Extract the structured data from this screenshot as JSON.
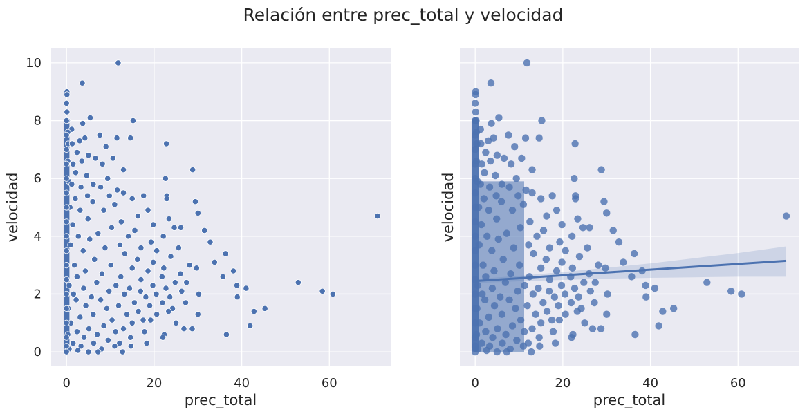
{
  "title": "Relación entre prec_total y velocidad",
  "colors": {
    "background": "#eaeaf2",
    "grid": "#ffffff",
    "point": "#4c72b0",
    "point_edge": "#ffffff",
    "ci_band": "#4c72b0"
  },
  "chart_data": [
    {
      "type": "scatter",
      "title": "",
      "xlabel": "prec_total",
      "ylabel": "velocidad",
      "xlim": [
        -3.5,
        74
      ],
      "ylim": [
        -0.5,
        10.5
      ],
      "xticks": [
        0,
        20,
        40,
        60
      ],
      "yticks": [
        0,
        2,
        4,
        6,
        8,
        10
      ],
      "grid": true,
      "points": [
        [
          11.8,
          10.0
        ],
        [
          0.1,
          9.0
        ],
        [
          0.1,
          8.9
        ],
        [
          3.6,
          9.3
        ],
        [
          0.0,
          8.6
        ],
        [
          0.1,
          8.3
        ],
        [
          0.2,
          8.0
        ],
        [
          5.4,
          8.1
        ],
        [
          15.2,
          8.0
        ],
        [
          3.7,
          7.9
        ],
        [
          1.2,
          7.7
        ],
        [
          0.3,
          7.6
        ],
        [
          4.2,
          7.4
        ],
        [
          7.6,
          7.5
        ],
        [
          11.5,
          7.4
        ],
        [
          14.6,
          7.4
        ],
        [
          0.4,
          7.2
        ],
        [
          1.3,
          7.2
        ],
        [
          3.0,
          7.3
        ],
        [
          9.0,
          7.1
        ],
        [
          22.8,
          7.2
        ],
        [
          2.4,
          6.9
        ],
        [
          5.0,
          6.8
        ],
        [
          6.6,
          6.7
        ],
        [
          0.3,
          6.6
        ],
        [
          10.6,
          6.7
        ],
        [
          3.5,
          6.6
        ],
        [
          1.5,
          6.5
        ],
        [
          8.2,
          6.5
        ],
        [
          13.0,
          6.3
        ],
        [
          28.8,
          6.3
        ],
        [
          2.1,
          6.2
        ],
        [
          4.6,
          6.1
        ],
        [
          9.4,
          6.0
        ],
        [
          22.6,
          6.0
        ],
        [
          0.5,
          5.9
        ],
        [
          6.1,
          5.8
        ],
        [
          1.2,
          5.8
        ],
        [
          3.3,
          5.7
        ],
        [
          7.8,
          5.7
        ],
        [
          11.6,
          5.6
        ],
        [
          13.0,
          5.5
        ],
        [
          17.6,
          5.4
        ],
        [
          22.9,
          5.4
        ],
        [
          4.8,
          5.4
        ],
        [
          9.8,
          5.4
        ],
        [
          15.0,
          5.3
        ],
        [
          22.9,
          5.3
        ],
        [
          29.4,
          5.2
        ],
        [
          2.0,
          5.3
        ],
        [
          6.0,
          5.2
        ],
        [
          11.0,
          5.1
        ],
        [
          18.6,
          4.9
        ],
        [
          30.0,
          4.8
        ],
        [
          0.8,
          5.0
        ],
        [
          3.1,
          4.9
        ],
        [
          8.5,
          4.9
        ],
        [
          16.3,
          4.7
        ],
        [
          23.4,
          4.6
        ],
        [
          71.0,
          4.7
        ],
        [
          4.9,
          4.6
        ],
        [
          12.5,
          4.5
        ],
        [
          19.8,
          4.4
        ],
        [
          26.1,
          4.3
        ],
        [
          1.4,
          4.4
        ],
        [
          10.3,
          4.3
        ],
        [
          15.6,
          4.2
        ],
        [
          24.6,
          4.3
        ],
        [
          31.5,
          4.2
        ],
        [
          7.2,
          4.1
        ],
        [
          14.1,
          4.0
        ],
        [
          22.1,
          4.0
        ],
        [
          2.7,
          4.0
        ],
        [
          19.3,
          3.8
        ],
        [
          32.8,
          3.8
        ],
        [
          5.3,
          3.9
        ],
        [
          12.2,
          3.7
        ],
        [
          17.0,
          3.6
        ],
        [
          25.6,
          3.6
        ],
        [
          0.9,
          3.7
        ],
        [
          8.8,
          3.6
        ],
        [
          20.6,
          3.5
        ],
        [
          36.3,
          3.4
        ],
        [
          3.8,
          3.5
        ],
        [
          13.3,
          3.4
        ],
        [
          23.8,
          3.3
        ],
        [
          16.2,
          3.2
        ],
        [
          19.8,
          3.1
        ],
        [
          28.1,
          3.0
        ],
        [
          33.8,
          3.1
        ],
        [
          6.4,
          3.2
        ],
        [
          10.1,
          3.0
        ],
        [
          22.2,
          2.9
        ],
        [
          29.7,
          2.9
        ],
        [
          1.8,
          3.0
        ],
        [
          15.0,
          2.9
        ],
        [
          18.6,
          2.8
        ],
        [
          26.0,
          2.7
        ],
        [
          38.1,
          2.8
        ],
        [
          4.3,
          2.8
        ],
        [
          8.1,
          2.7
        ],
        [
          12.4,
          2.6
        ],
        [
          21.8,
          2.6
        ],
        [
          35.7,
          2.6
        ],
        [
          2.4,
          2.6
        ],
        [
          17.0,
          2.5
        ],
        [
          24.8,
          2.4
        ],
        [
          27.4,
          2.4
        ],
        [
          52.9,
          2.4
        ],
        [
          6.9,
          2.4
        ],
        [
          11.3,
          2.3
        ],
        [
          19.7,
          2.3
        ],
        [
          38.9,
          2.3
        ],
        [
          0.6,
          2.3
        ],
        [
          14.4,
          2.2
        ],
        [
          22.7,
          2.2
        ],
        [
          41.0,
          2.2
        ],
        [
          3.9,
          2.2
        ],
        [
          9.7,
          2.1
        ],
        [
          16.9,
          2.1
        ],
        [
          26.3,
          2.1
        ],
        [
          58.4,
          2.1
        ],
        [
          1.6,
          2.0
        ],
        [
          13.2,
          2.0
        ],
        [
          20.5,
          2.0
        ],
        [
          30.2,
          2.0
        ],
        [
          60.8,
          2.0
        ],
        [
          5.7,
          1.9
        ],
        [
          18.1,
          1.9
        ],
        [
          23.6,
          1.9
        ],
        [
          39.0,
          1.9
        ],
        [
          7.8,
          1.8
        ],
        [
          15.5,
          1.7
        ],
        [
          21.9,
          1.7
        ],
        [
          27.2,
          1.7
        ],
        [
          2.2,
          1.8
        ],
        [
          11.9,
          1.6
        ],
        [
          19.0,
          1.6
        ],
        [
          24.2,
          1.5
        ],
        [
          45.3,
          1.5
        ],
        [
          4.4,
          1.6
        ],
        [
          9.2,
          1.5
        ],
        [
          16.4,
          1.4
        ],
        [
          23.3,
          1.4
        ],
        [
          42.8,
          1.4
        ],
        [
          0.4,
          1.5
        ],
        [
          13.8,
          1.3
        ],
        [
          20.6,
          1.3
        ],
        [
          30.0,
          1.3
        ],
        [
          6.1,
          1.3
        ],
        [
          17.5,
          1.1
        ],
        [
          19.2,
          1.1
        ],
        [
          25.0,
          1.0
        ],
        [
          3.1,
          1.2
        ],
        [
          10.4,
          1.1
        ],
        [
          15.0,
          1.0
        ],
        [
          41.9,
          0.9
        ],
        [
          1.0,
          1.0
        ],
        [
          8.5,
          0.9
        ],
        [
          13.0,
          0.8
        ],
        [
          26.8,
          0.8
        ],
        [
          28.7,
          0.8
        ],
        [
          5.1,
          0.8
        ],
        [
          11.2,
          0.7
        ],
        [
          17.8,
          0.7
        ],
        [
          22.3,
          0.6
        ],
        [
          36.5,
          0.6
        ],
        [
          2.4,
          0.7
        ],
        [
          7.0,
          0.6
        ],
        [
          14.6,
          0.5
        ],
        [
          22.0,
          0.5
        ],
        [
          0.3,
          0.6
        ],
        [
          4.0,
          0.5
        ],
        [
          9.5,
          0.4
        ],
        [
          12.1,
          0.3
        ],
        [
          18.3,
          0.3
        ],
        [
          6.2,
          0.3
        ],
        [
          11.0,
          0.2
        ],
        [
          14.7,
          0.2
        ],
        [
          1.5,
          0.3
        ],
        [
          3.3,
          0.2
        ],
        [
          8.0,
          0.1
        ],
        [
          0.6,
          0.1
        ],
        [
          2.6,
          0.05
        ],
        [
          5.0,
          0.0
        ],
        [
          7.2,
          0.0
        ],
        [
          12.8,
          0.0
        ],
        [
          0.0,
          0.0
        ],
        [
          0.0,
          0.2
        ],
        [
          0.0,
          0.5
        ],
        [
          0.0,
          1.0
        ],
        [
          0.0,
          1.5
        ],
        [
          0.0,
          2.0
        ],
        [
          0.0,
          2.5
        ],
        [
          0.0,
          3.0
        ],
        [
          0.0,
          3.5
        ],
        [
          0.0,
          4.0
        ],
        [
          0.0,
          4.5
        ],
        [
          0.0,
          5.0
        ],
        [
          0.0,
          5.5
        ],
        [
          0.0,
          6.0
        ],
        [
          0.0,
          6.5
        ],
        [
          0.0,
          7.0
        ],
        [
          0.0,
          7.5
        ],
        [
          0.0,
          8.0
        ]
      ]
    },
    {
      "type": "scatter",
      "title": "",
      "xlabel": "prec_total",
      "ylabel": "velocidad",
      "xlim": [
        -3.5,
        74
      ],
      "ylim": [
        -0.5,
        10.5
      ],
      "xticks": [
        0,
        20,
        40,
        60
      ],
      "yticks": [
        0,
        2,
        4,
        6,
        8,
        10
      ],
      "ytick_labels_shown": false,
      "grid": true,
      "same_points_as_left": true,
      "regression_line": {
        "x": [
          0,
          71
        ],
        "y": [
          2.45,
          3.15
        ]
      },
      "confidence_band": {
        "x": [
          0,
          10,
          20,
          30,
          40,
          50,
          60,
          71
        ],
        "upper": [
          2.52,
          2.63,
          2.76,
          2.91,
          3.06,
          3.24,
          3.42,
          3.65
        ],
        "lower": [
          2.38,
          2.44,
          2.49,
          2.53,
          2.56,
          2.58,
          2.6,
          2.6
        ]
      }
    }
  ]
}
